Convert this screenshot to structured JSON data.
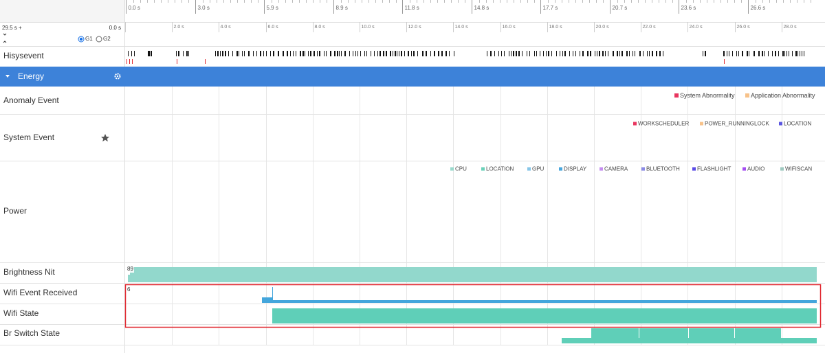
{
  "ruler": {
    "top_ticks": [
      "0.0 s",
      "3.0 s",
      "5.9 s",
      "8.9 s",
      "11.8 s",
      "14.8 s",
      "17.7 s",
      "20.7 s",
      "23.6 s",
      "26.6 s"
    ],
    "fine_ticks": [
      "2.0 s",
      "4.0 s",
      "6.0 s",
      "8.0 s",
      "10.0 s",
      "12.0 s",
      "14.0 s",
      "16.0 s",
      "18.0 s",
      "20.0 s",
      "22.0 s",
      "24.0 s",
      "26.0 s",
      "28.0 s"
    ]
  },
  "controls": {
    "range": "29.5 s +",
    "offset": "0.0 s",
    "groups": [
      "G1",
      "G2"
    ]
  },
  "rows": {
    "hisysevent": "Hisysevent",
    "energy": "Energy",
    "anomaly": "Anomaly Event",
    "system": "System Event",
    "power": "Power",
    "brightness": "Brightness Nit",
    "wifi_event": "Wifi Event Received",
    "wifi_state": "Wifi State",
    "br_switch": "Br Switch State"
  },
  "legends": {
    "anomaly": [
      {
        "name": "System Abnormality",
        "color": "#e8365f"
      },
      {
        "name": "Application Abnormality",
        "color": "#f7c28a"
      }
    ],
    "system": [
      {
        "name": "WORKSCHEDULER",
        "color": "#e8365f"
      },
      {
        "name": "POWER_RUNNINGLOCK",
        "color": "#f7c28a"
      },
      {
        "name": "LOCATION",
        "color": "#5a56e0"
      }
    ],
    "power": [
      {
        "name": "CPU",
        "color": "#9ad9cc"
      },
      {
        "name": "LOCATION",
        "color": "#6bd1b9"
      },
      {
        "name": "GPU",
        "color": "#87c6e8"
      },
      {
        "name": "DISPLAY",
        "color": "#4aa7de"
      },
      {
        "name": "CAMERA",
        "color": "#c58ef0"
      },
      {
        "name": "BLUETOOTH",
        "color": "#8a8ae6"
      },
      {
        "name": "FLASHLIGHT",
        "color": "#5a4be6"
      },
      {
        "name": "AUDIO",
        "color": "#a44ef2"
      },
      {
        "name": "WIFISCAN",
        "color": "#9ec9c0"
      }
    ]
  },
  "tracks": {
    "brightness_label": "89",
    "wifi_event_label": "6"
  }
}
